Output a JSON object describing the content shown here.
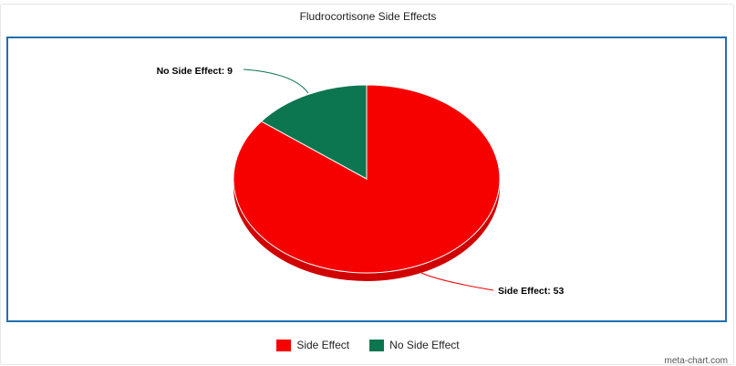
{
  "chart_data": {
    "type": "pie",
    "title": "Fludrocortisone Side Effects",
    "slices": [
      {
        "label": "Side Effect",
        "value": 53,
        "color": "#f60000",
        "data_label": "Side Effect: 53"
      },
      {
        "label": "No Side Effect",
        "value": 9,
        "color": "#0c7650",
        "data_label": "No Side Effect: 9"
      }
    ],
    "legend_placement": "bottom"
  },
  "credit": "meta-chart.com"
}
